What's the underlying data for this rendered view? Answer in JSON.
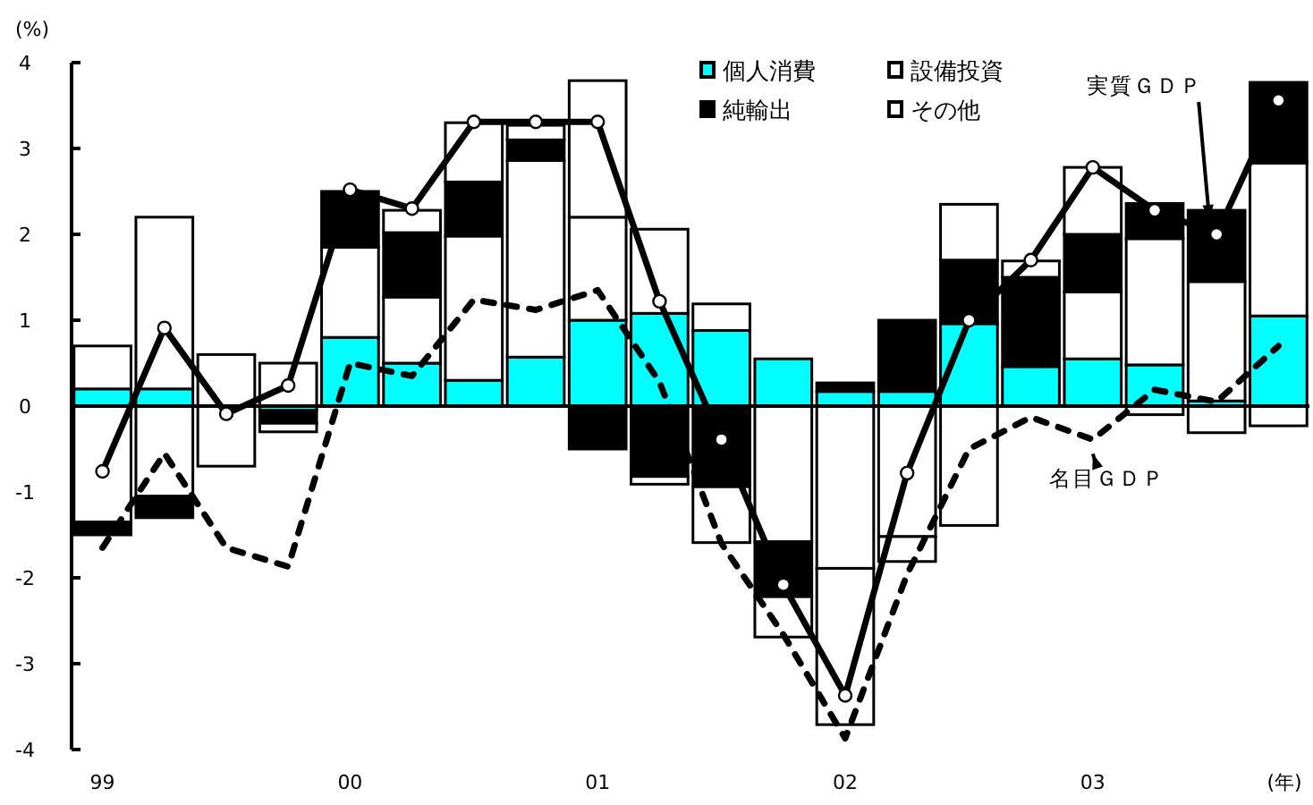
{
  "chart_data": {
    "type": "bar",
    "stacked": true,
    "ylabel": "(%)",
    "xlabel": "(年)",
    "categories": [
      "99",
      null,
      null,
      null,
      "00",
      null,
      null,
      null,
      "01",
      null,
      null,
      null,
      "02",
      null,
      null,
      null,
      "03",
      null,
      null,
      null
    ],
    "ylim": [
      -4,
      4
    ],
    "yticks": [
      -4,
      -3,
      -2,
      -1,
      0,
      1,
      2,
      3,
      4
    ],
    "legend": "top",
    "series": [
      {
        "name": "個人消費",
        "color": "#00ffff",
        "values": [
          0.2,
          0.2,
          0,
          -0.05,
          0.8,
          0.5,
          0.3,
          0.57,
          1.0,
          1.08,
          0.88,
          0.55,
          0.17,
          0.17,
          0.96,
          0.46,
          0.55,
          0.48,
          0.06,
          1.05
        ]
      },
      {
        "name": "設備投資",
        "color": "#ffffff",
        "values": [
          -1.35,
          -1.05,
          -0.7,
          0.5,
          1.05,
          0.77,
          1.68,
          2.29,
          1.2,
          0.98,
          0.31,
          -1.58,
          -1.89,
          -1.52,
          -1.39,
          0,
          0.78,
          1.47,
          1.39,
          1.78
        ]
      },
      {
        "name": "純輸出",
        "color": "#000000",
        "values": [
          -0.15,
          -0.25,
          0,
          -0.15,
          0.65,
          0.75,
          0.63,
          0.24,
          -0.5,
          -0.82,
          -0.94,
          -0.64,
          0.1,
          0.83,
          0.74,
          1.04,
          0.67,
          0.41,
          0.83,
          0.94
        ]
      },
      {
        "name": "その他",
        "color": "#ffffff",
        "values": [
          0.5,
          2.0,
          0.6,
          -0.1,
          0,
          0.26,
          0.69,
          0.17,
          1.59,
          -0.09,
          -0.65,
          -0.47,
          -1.82,
          -0.29,
          0.65,
          0.19,
          0.78,
          -0.1,
          -0.31,
          -0.23
        ]
      },
      {
        "name": "実質ＧＤＰ",
        "type": "line",
        "color": "#000000",
        "marker": "circle",
        "line_style": "solid",
        "values": [
          -0.76,
          0.91,
          -0.09,
          0.24,
          2.52,
          2.3,
          3.31,
          3.31,
          3.31,
          1.22,
          -0.39,
          -2.08,
          -3.37,
          -0.78,
          1.0,
          1.7,
          2.78,
          2.28,
          2.0,
          3.56
        ]
      },
      {
        "name": "名目ＧＤＰ",
        "type": "line",
        "color": "#000000",
        "marker": "none",
        "line_style": "dashed",
        "values": [
          -1.65,
          -0.55,
          -1.65,
          -1.87,
          0.5,
          0.35,
          1.24,
          1.12,
          1.35,
          0.28,
          -1.6,
          -2.66,
          -3.87,
          -1.96,
          -0.5,
          -0.13,
          -0.39,
          0.19,
          0.05,
          0.7
        ]
      }
    ]
  }
}
